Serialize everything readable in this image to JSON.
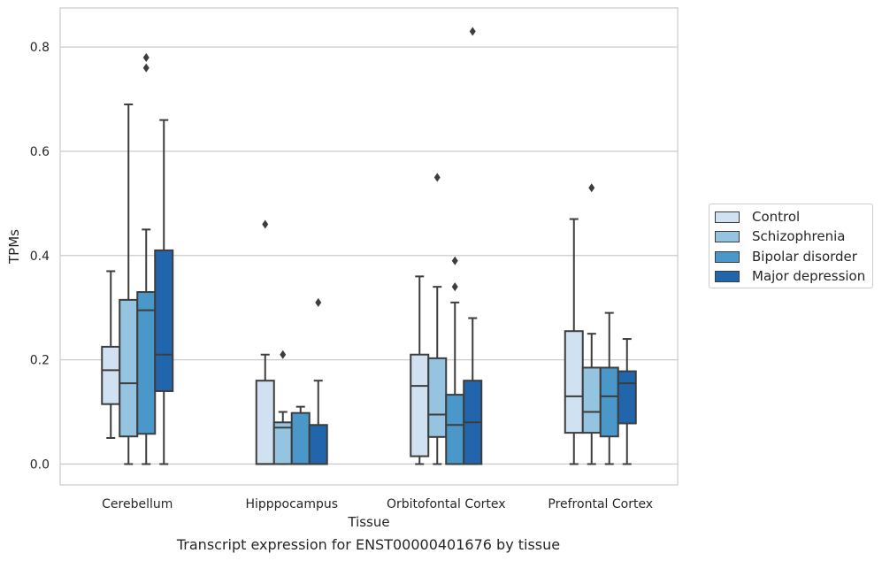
{
  "chart_data": {
    "type": "box",
    "title": "",
    "caption": "Transcript expression for ENST00000401676 by tissue",
    "xlabel": "Tissue",
    "ylabel": "TPMs",
    "ylim": [
      -0.04,
      0.875
    ],
    "yticks": [
      0.0,
      0.2,
      0.4,
      0.6,
      0.8
    ],
    "ytick_labels": [
      "0.0",
      "0.2",
      "0.4",
      "0.6",
      "0.8"
    ],
    "grid": true,
    "legend_position": "right",
    "categories": [
      "Cerebellum",
      "Hipppocampus",
      "Orbitofontal Cortex",
      "Prefrontal Cortex"
    ],
    "series": [
      {
        "name": "Control",
        "color": "#d0e1f2",
        "boxes": [
          {
            "whisker_low": 0.05,
            "q1": 0.115,
            "median": 0.18,
            "q3": 0.225,
            "whisker_high": 0.37,
            "outliers": []
          },
          {
            "whisker_low": 0.0,
            "q1": 0.0,
            "median": 0.0,
            "q3": 0.16,
            "whisker_high": 0.21,
            "outliers": [
              0.46
            ]
          },
          {
            "whisker_low": 0.0,
            "q1": 0.015,
            "median": 0.15,
            "q3": 0.21,
            "whisker_high": 0.36,
            "outliers": []
          },
          {
            "whisker_low": 0.0,
            "q1": 0.06,
            "median": 0.13,
            "q3": 0.255,
            "whisker_high": 0.47,
            "outliers": []
          }
        ]
      },
      {
        "name": "Schizophrenia",
        "color": "#94c4df",
        "boxes": [
          {
            "whisker_low": 0.0,
            "q1": 0.053,
            "median": 0.155,
            "q3": 0.315,
            "whisker_high": 0.69,
            "outliers": []
          },
          {
            "whisker_low": 0.0,
            "q1": 0.0,
            "median": 0.07,
            "q3": 0.08,
            "whisker_high": 0.1,
            "outliers": [
              0.21
            ]
          },
          {
            "whisker_low": 0.0,
            "q1": 0.052,
            "median": 0.095,
            "q3": 0.203,
            "whisker_high": 0.34,
            "outliers": [
              0.55
            ]
          },
          {
            "whisker_low": 0.0,
            "q1": 0.06,
            "median": 0.1,
            "q3": 0.185,
            "whisker_high": 0.25,
            "outliers": [
              0.53
            ]
          }
        ]
      },
      {
        "name": "Bipolar disorder",
        "color": "#4a98c9",
        "boxes": [
          {
            "whisker_low": 0.0,
            "q1": 0.058,
            "median": 0.295,
            "q3": 0.33,
            "whisker_high": 0.45,
            "outliers": [
              0.76,
              0.78
            ]
          },
          {
            "whisker_low": 0.0,
            "q1": 0.0,
            "median": 0.0,
            "q3": 0.098,
            "whisker_high": 0.11,
            "outliers": []
          },
          {
            "whisker_low": 0.0,
            "q1": 0.0,
            "median": 0.075,
            "q3": 0.133,
            "whisker_high": 0.31,
            "outliers": [
              0.34,
              0.39
            ]
          },
          {
            "whisker_low": 0.0,
            "q1": 0.053,
            "median": 0.13,
            "q3": 0.185,
            "whisker_high": 0.29,
            "outliers": []
          }
        ]
      },
      {
        "name": "Major depression",
        "color": "#2166ac",
        "boxes": [
          {
            "whisker_low": 0.0,
            "q1": 0.14,
            "median": 0.21,
            "q3": 0.41,
            "whisker_high": 0.66,
            "outliers": []
          },
          {
            "whisker_low": 0.0,
            "q1": 0.0,
            "median": 0.0,
            "q3": 0.075,
            "whisker_high": 0.16,
            "outliers": [
              0.31
            ]
          },
          {
            "whisker_low": 0.0,
            "q1": 0.0,
            "median": 0.08,
            "q3": 0.16,
            "whisker_high": 0.28,
            "outliers": [
              0.83
            ]
          },
          {
            "whisker_low": 0.0,
            "q1": 0.078,
            "median": 0.155,
            "q3": 0.178,
            "whisker_high": 0.24,
            "outliers": []
          }
        ]
      }
    ]
  }
}
